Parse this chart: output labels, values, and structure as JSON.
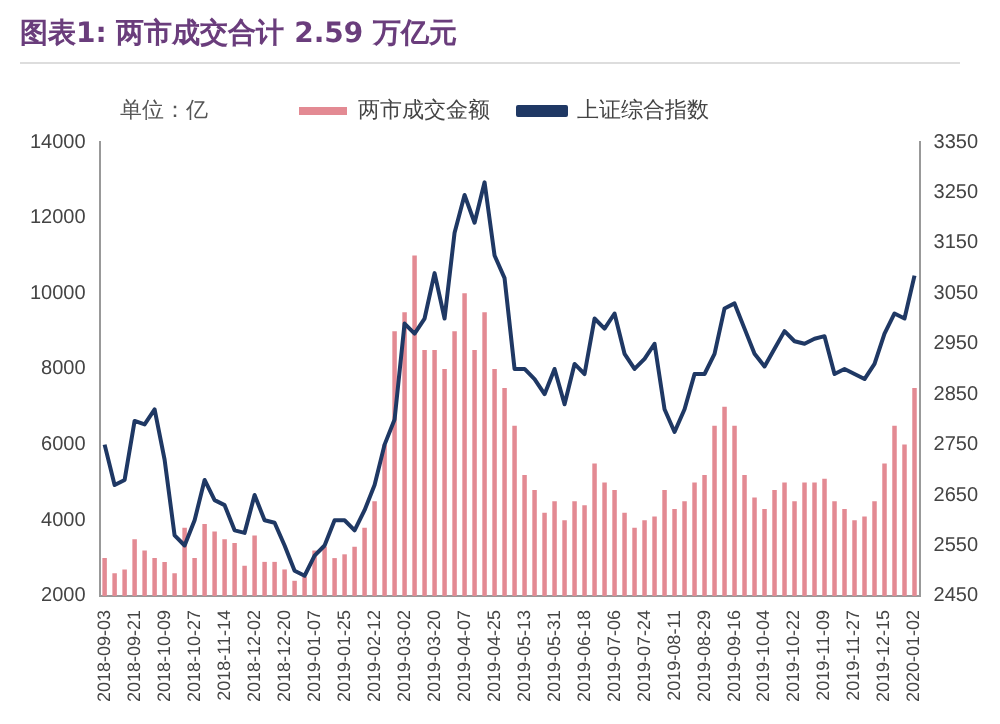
{
  "chart_data": {
    "type": "bar",
    "title": "图表1:  两市成交合计 2.59 万亿元",
    "ylabel": "单位：亿",
    "categories": [
      "2018-09-03",
      null,
      null,
      "2018-09-21",
      null,
      null,
      "2018-10-09",
      null,
      null,
      "2018-10-27",
      null,
      null,
      "2018-11-14",
      null,
      null,
      "2018-12-02",
      null,
      null,
      "2018-12-20",
      null,
      null,
      "2019-01-07",
      null,
      null,
      "2019-01-25",
      null,
      null,
      "2019-02-12",
      null,
      null,
      "2019-03-02",
      null,
      null,
      "2019-03-20",
      null,
      null,
      "2019-04-07",
      null,
      null,
      "2019-04-25",
      null,
      null,
      "2019-05-13",
      null,
      null,
      "2019-05-31",
      null,
      null,
      "2019-06-18",
      null,
      null,
      "2019-07-06",
      null,
      null,
      "2019-07-24",
      null,
      null,
      "2019-08-11",
      null,
      null,
      "2019-08-29",
      null,
      null,
      "2019-09-16",
      null,
      null,
      "2019-10-04",
      null,
      null,
      "2019-10-22",
      null,
      null,
      "2019-11-09",
      null,
      null,
      "2019-11-27",
      null,
      null,
      "2019-12-15",
      null,
      null,
      "2020-01-02"
    ],
    "series": [
      {
        "name": "两市成交金额",
        "color": "#e38a93",
        "values": [
          3000,
          2600,
          2700,
          3500,
          3200,
          3000,
          2900,
          2600,
          3800,
          3000,
          3900,
          3700,
          3500,
          3400,
          2800,
          3600,
          2900,
          2900,
          2700,
          2400,
          2500,
          3200,
          3300,
          3000,
          3100,
          3300,
          3800,
          4500,
          6000,
          9000,
          9500,
          11000,
          8500,
          8500,
          8000,
          9000,
          10000,
          8500,
          9500,
          8000,
          7500,
          6500,
          5200,
          4800,
          4200,
          4500,
          4000,
          4500,
          4400,
          5500,
          5000,
          4800,
          4200,
          3800,
          4000,
          4100,
          4800,
          4300,
          4500,
          5000,
          5200,
          6500,
          7000,
          6500,
          5200,
          4600,
          4300,
          4800,
          5000,
          4500,
          5000,
          5000,
          5100,
          4500,
          4300,
          4000,
          4100,
          4500,
          5500,
          6500,
          6000,
          7500
        ]
      },
      {
        "name": "上证综合指数",
        "type": "line",
        "axis": "y2",
        "color": "#1f3864",
        "values": [
          2750,
          2670,
          2680,
          2797,
          2790,
          2820,
          2720,
          2570,
          2550,
          2600,
          2680,
          2640,
          2630,
          2580,
          2575,
          2650,
          2600,
          2595,
          2550,
          2500,
          2490,
          2530,
          2550,
          2600,
          2600,
          2580,
          2620,
          2670,
          2750,
          2800,
          2990,
          2970,
          3000,
          3090,
          3000,
          3170,
          3245,
          3190,
          3270,
          3125,
          3080,
          2900,
          2900,
          2880,
          2850,
          2900,
          2830,
          2910,
          2890,
          3000,
          2980,
          3010,
          2930,
          2900,
          2920,
          2950,
          2820,
          2775,
          2820,
          2890,
          2890,
          2930,
          3020,
          3030,
          2980,
          2930,
          2905,
          2940,
          2975,
          2955,
          2950,
          2960,
          2965,
          2890,
          2900,
          2890,
          2880,
          2910,
          2970,
          3010,
          3000,
          3085
        ]
      }
    ],
    "ylim": [
      2000,
      14000
    ],
    "yticks": [
      2000,
      4000,
      6000,
      8000,
      10000,
      12000,
      14000
    ],
    "y2lim": [
      2450,
      3350
    ],
    "y2ticks": [
      2450,
      2550,
      2650,
      2750,
      2850,
      2950,
      3050,
      3150,
      3250,
      3350
    ],
    "legend": "top",
    "grid": false,
    "marker": "none"
  }
}
